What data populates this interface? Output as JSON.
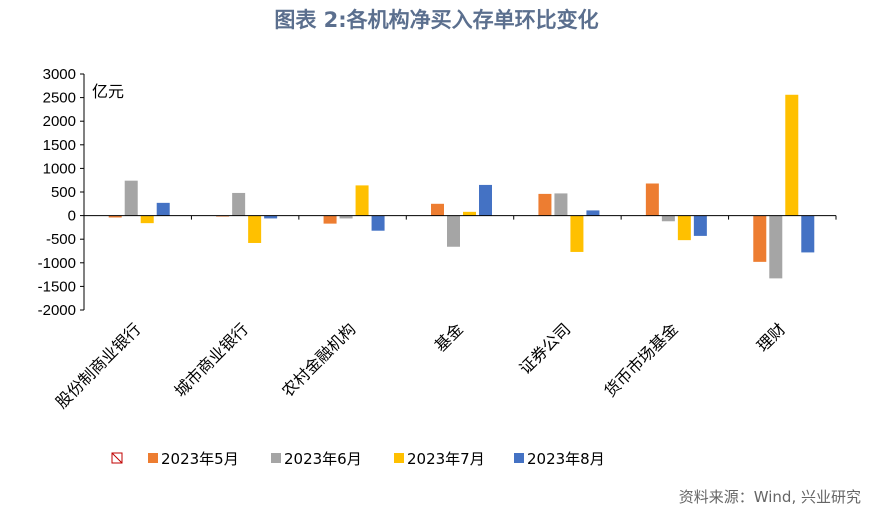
{
  "title": "图表 2:各机构净买入存单环比变化",
  "source": "资料来源：Wind, 兴业研究",
  "chart_data": {
    "type": "bar",
    "title": "图表 2:各机构净买入存单环比变化",
    "ylabel": "亿元",
    "xlabel": "",
    "ylim": [
      -2000,
      3000
    ],
    "ytick_step": 500,
    "grid": false,
    "legend_position": "bottom",
    "categories": [
      "股份制商业银行",
      "城市商业银行",
      "农村金融机构",
      "基金",
      "证券公司",
      "货币市场基金",
      "理财"
    ],
    "series": [
      {
        "name": "2023年5月",
        "color": "#ed7d31",
        "values": [
          -40,
          -20,
          -170,
          250,
          460,
          680,
          -980
        ]
      },
      {
        "name": "2023年6月",
        "color": "#a5a5a5",
        "values": [
          740,
          480,
          -60,
          -660,
          470,
          -120,
          -1330
        ]
      },
      {
        "name": "2023年7月",
        "color": "#ffc000",
        "values": [
          -160,
          -580,
          640,
          80,
          -770,
          -520,
          2560
        ]
      },
      {
        "name": "2023年8月",
        "color": "#4472c4",
        "values": [
          270,
          -60,
          -320,
          650,
          110,
          -430,
          -780
        ]
      }
    ]
  }
}
